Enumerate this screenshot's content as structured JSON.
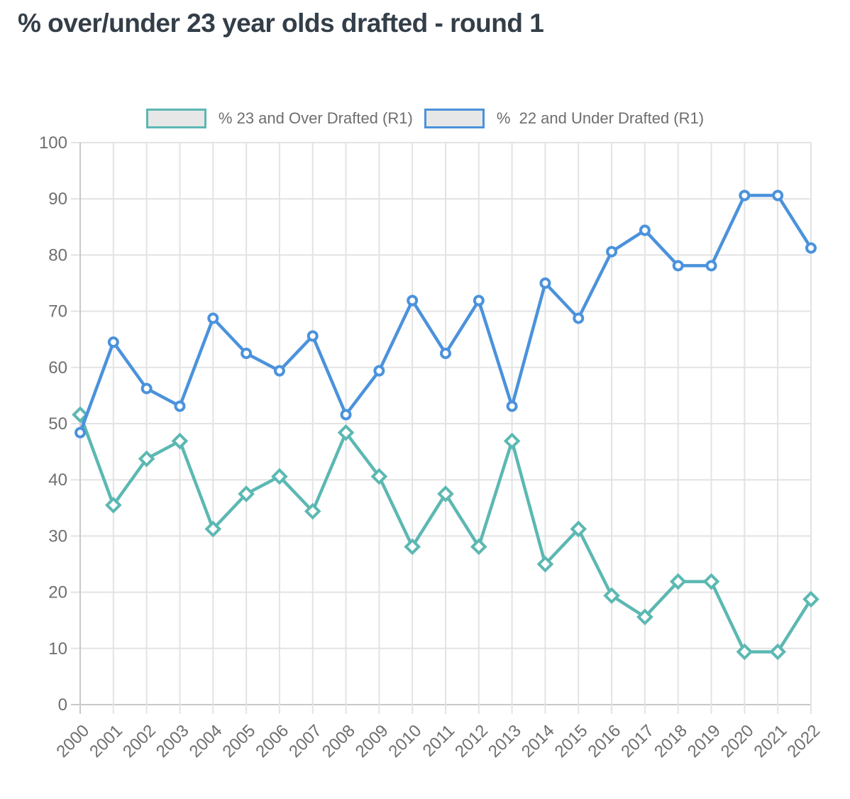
{
  "header": {
    "title": "% over/under 23 year olds drafted - round 1"
  },
  "colors": {
    "title_text": "#333e48",
    "axis_text": "#6f6f6f",
    "grid_line": "#e3e3e3",
    "axis_line": "#c9c9c9",
    "legend_text": "#6e6e6e",
    "legend_swatch_fill": "#e7e7e7",
    "marker_fill": "#ffffff",
    "series_over23": "#5cb8b2",
    "series_under22": "#4b92dc"
  },
  "chart_data": {
    "type": "line",
    "title": "% over/under 23 year olds drafted - round 1",
    "xlabel": "",
    "ylabel": "",
    "ylim": [
      0,
      100
    ],
    "yticks": [
      0,
      10,
      20,
      30,
      40,
      50,
      60,
      70,
      80,
      90,
      100
    ],
    "grid": true,
    "legend_position": "top",
    "x": [
      "2000",
      "2001",
      "2002",
      "2003",
      "2004",
      "2005",
      "2006",
      "2007",
      "2008",
      "2009",
      "2010",
      "2011",
      "2012",
      "2013",
      "2014",
      "2015",
      "2016",
      "2017",
      "2018",
      "2019",
      "2020",
      "2021",
      "2022"
    ],
    "series": [
      {
        "name": "% 23 and Over Drafted (R1)",
        "key": "23-and-over",
        "color": "#5cb8b2",
        "marker": "diamond",
        "values": [
          51.6,
          35.5,
          43.75,
          46.9,
          31.25,
          37.5,
          40.6,
          34.4,
          48.4,
          40.6,
          28.1,
          37.5,
          28.1,
          46.9,
          25.0,
          31.25,
          19.4,
          15.6,
          21.9,
          21.9,
          9.4,
          9.4,
          18.75
        ]
      },
      {
        "name": "%  22 and Under Drafted (R1)",
        "key": "22-and-under",
        "color": "#4b92dc",
        "marker": "circle",
        "values": [
          48.4,
          64.5,
          56.25,
          53.1,
          68.75,
          62.5,
          59.4,
          65.6,
          51.6,
          59.4,
          71.9,
          62.5,
          71.9,
          53.1,
          75.0,
          68.75,
          80.6,
          84.4,
          78.1,
          78.1,
          90.6,
          90.6,
          81.25
        ]
      }
    ]
  }
}
